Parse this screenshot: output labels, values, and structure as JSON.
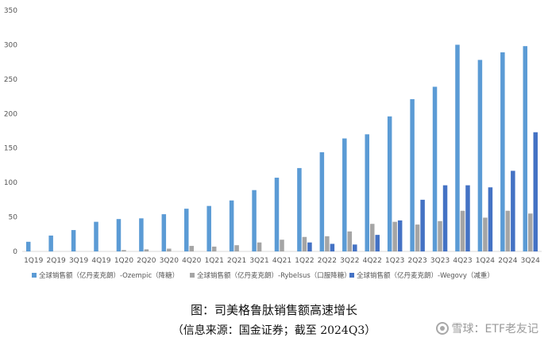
{
  "chart_data": {
    "type": "bar",
    "title": "",
    "xlabel": "",
    "ylabel": "",
    "ylim": [
      0,
      350
    ],
    "yticks": [
      0,
      50,
      100,
      150,
      200,
      250,
      300,
      350
    ],
    "grid": false,
    "legend_position": "bottom",
    "categories": [
      "1Q19",
      "2Q19",
      "3Q19",
      "4Q19",
      "1Q20",
      "2Q20",
      "3Q20",
      "4Q20",
      "1Q21",
      "2Q21",
      "3Q21",
      "4Q21",
      "1Q22",
      "2Q22",
      "3Q22",
      "4Q22",
      "1Q23",
      "2Q23",
      "3Q23",
      "4Q23",
      "1Q24",
      "2Q24",
      "3Q24"
    ],
    "series": [
      {
        "name": "全球销售额（亿丹麦克朗）-Ozempic（降糖）",
        "color": "#5B9BD5",
        "values": [
          14,
          23,
          31,
          43,
          47,
          48,
          54,
          62,
          66,
          74,
          89,
          107,
          121,
          144,
          164,
          170,
          196,
          221,
          239,
          300,
          278,
          289,
          298
        ]
      },
      {
        "name": "全球销售额（亿丹麦克朗）-Rybelsus（口服降糖）",
        "color": "#A5A5A5",
        "values": [
          0,
          0,
          0,
          0,
          2,
          3,
          4,
          8,
          7,
          9,
          13,
          17,
          21,
          22,
          29,
          40,
          43,
          39,
          44,
          59,
          49,
          59,
          55
        ]
      },
      {
        "name": "全球销售额（亿丹麦克朗）-Wegovy（减重）",
        "color": "#4472C4",
        "values": [
          null,
          null,
          null,
          null,
          null,
          null,
          null,
          null,
          null,
          null,
          null,
          null,
          13,
          11,
          10,
          24,
          45,
          75,
          96,
          96,
          93,
          117,
          173
        ]
      }
    ]
  },
  "caption": {
    "title": "图：司美格鲁肽销售额高速增长",
    "source": "（信息来源：国金证券；截至 2024Q3）"
  },
  "watermark": {
    "text": "雪球：ETF老友记"
  }
}
